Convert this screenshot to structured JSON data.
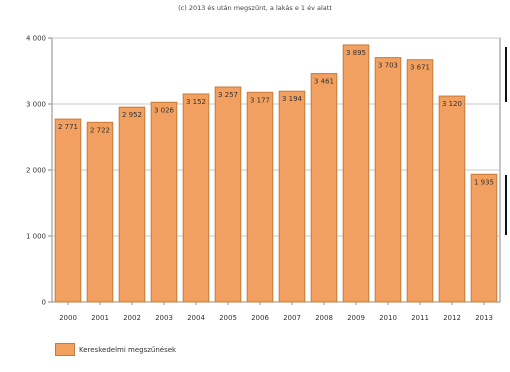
{
  "chart_data": {
    "type": "bar",
    "title": "(c) 2013 és után megszűnt, a lakás e 1 év alatt",
    "categories": [
      "2000",
      "2001",
      "2002",
      "2003",
      "2004",
      "2005",
      "2006",
      "2007",
      "2008",
      "2009",
      "2010",
      "2011",
      "2012",
      "2013"
    ],
    "series": [
      {
        "name": "Kereskedelmi megszűnések",
        "values": [
          2771,
          2722,
          2952,
          3026,
          3152,
          3257,
          3177,
          3194,
          3461,
          3895,
          3703,
          3671,
          3120,
          1935
        ],
        "labels": [
          "2 771",
          "2 722",
          "2 952",
          "3 026",
          "3 152",
          "3 257",
          "3 177",
          "3 194",
          "3 461",
          "3 895",
          "3 703",
          "3 671",
          "3 120",
          "1 935"
        ]
      }
    ],
    "ylim": [
      0,
      4000
    ],
    "yticks": [
      0,
      1000,
      2000,
      3000,
      4000
    ],
    "ytick_labels": [
      "0",
      "1 000",
      "2 000",
      "3 000",
      "4 000"
    ],
    "grid": true,
    "legend_position": "bottom-left",
    "colors": {
      "bar": "#f2a05f",
      "bar_stroke": "#c57a3a",
      "grid": "#c8c8c8",
      "axis": "#888888"
    }
  }
}
